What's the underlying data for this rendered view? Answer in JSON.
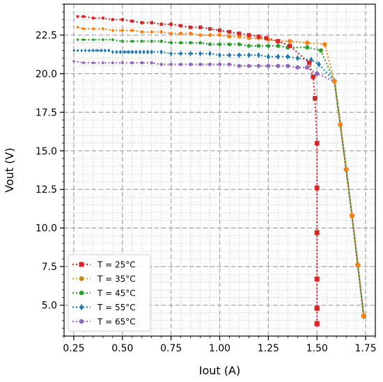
{
  "chart_data": {
    "type": "line",
    "title": "",
    "xlabel": "Iout (A)",
    "ylabel": "Vout (V)",
    "xlim": [
      0.2,
      1.8
    ],
    "ylim": [
      3.0,
      24.5
    ],
    "xticks": [
      0.25,
      0.5,
      0.75,
      1.0,
      1.25,
      1.5,
      1.75
    ],
    "xtick_labels": [
      "0.25",
      "0.50",
      "0.75",
      "1.00",
      "1.25",
      "1.50",
      "1.75"
    ],
    "yticks": [
      5.0,
      7.5,
      10.0,
      12.5,
      15.0,
      17.5,
      20.0,
      22.5
    ],
    "ytick_labels": [
      "5.0",
      "7.5",
      "10.0",
      "12.5",
      "15.0",
      "17.5",
      "20.0",
      "22.5"
    ],
    "grid": true,
    "legend_position": "lower-left",
    "series": [
      {
        "name": "T = 25°C",
        "color": "#d62728",
        "marker": "square",
        "x": [
          0.27,
          0.3,
          0.35,
          0.4,
          0.45,
          0.5,
          0.55,
          0.6,
          0.65,
          0.7,
          0.75,
          0.8,
          0.85,
          0.9,
          0.95,
          1.0,
          1.05,
          1.1,
          1.15,
          1.2,
          1.24,
          1.3,
          1.36,
          1.46,
          1.48,
          1.49,
          1.5,
          1.5,
          1.5,
          1.5,
          1.5,
          1.5
        ],
        "y": [
          23.7,
          23.7,
          23.6,
          23.6,
          23.5,
          23.5,
          23.4,
          23.3,
          23.3,
          23.2,
          23.2,
          23.1,
          23.0,
          23.0,
          22.9,
          22.8,
          22.7,
          22.6,
          22.5,
          22.4,
          22.3,
          22.1,
          21.8,
          20.7,
          19.8,
          18.4,
          15.5,
          12.6,
          9.7,
          6.7,
          4.8,
          3.8
        ]
      },
      {
        "name": "T = 35°C",
        "color": "#ff7f0e",
        "marker": "circle",
        "x": [
          0.27,
          0.3,
          0.35,
          0.4,
          0.45,
          0.5,
          0.55,
          0.6,
          0.65,
          0.7,
          0.75,
          0.8,
          0.85,
          0.9,
          0.95,
          1.0,
          1.05,
          1.1,
          1.15,
          1.2,
          1.25,
          1.3,
          1.36,
          1.45,
          1.54,
          1.59,
          1.62,
          1.65,
          1.68,
          1.71,
          1.74
        ],
        "y": [
          23.0,
          22.9,
          22.9,
          22.9,
          22.8,
          22.8,
          22.8,
          22.7,
          22.7,
          22.7,
          22.6,
          22.6,
          22.6,
          22.5,
          22.5,
          22.5,
          22.4,
          22.4,
          22.3,
          22.3,
          22.2,
          22.1,
          22.1,
          22.0,
          21.9,
          19.5,
          16.7,
          13.8,
          10.8,
          7.6,
          4.3
        ]
      },
      {
        "name": "T = 45°C",
        "color": "#2ca02c",
        "marker": "pentagon",
        "x": [
          0.27,
          0.3,
          0.35,
          0.4,
          0.45,
          0.5,
          0.55,
          0.6,
          0.65,
          0.7,
          0.75,
          0.8,
          0.85,
          0.9,
          0.95,
          1.0,
          1.05,
          1.1,
          1.15,
          1.2,
          1.25,
          1.3,
          1.35,
          1.45,
          1.52,
          1.59,
          1.62,
          1.65,
          1.68,
          1.71,
          1.74
        ],
        "y": [
          22.2,
          22.2,
          22.2,
          22.2,
          22.2,
          22.1,
          22.1,
          22.1,
          22.1,
          22.1,
          22.0,
          22.0,
          22.0,
          22.0,
          21.9,
          21.9,
          21.9,
          21.9,
          21.8,
          21.8,
          21.8,
          21.8,
          21.7,
          21.7,
          21.5,
          19.5,
          16.7,
          13.8,
          10.8,
          7.6,
          4.3
        ]
      },
      {
        "name": "T = 55°C",
        "color": "#1f77b4",
        "marker": "diamond",
        "x": [
          0.25,
          0.27,
          0.29,
          0.31,
          0.33,
          0.35,
          0.37,
          0.39,
          0.41,
          0.43,
          0.45,
          0.47,
          0.49,
          0.51,
          0.53,
          0.55,
          0.57,
          0.59,
          0.61,
          0.63,
          0.65,
          0.7,
          0.75,
          0.8,
          0.85,
          0.9,
          0.95,
          1.0,
          1.05,
          1.1,
          1.15,
          1.2,
          1.25,
          1.3,
          1.35,
          1.4,
          1.47,
          1.51,
          1.59,
          1.62,
          1.65,
          1.68,
          1.71,
          1.74
        ],
        "y": [
          21.5,
          21.5,
          21.5,
          21.5,
          21.5,
          21.5,
          21.5,
          21.5,
          21.5,
          21.5,
          21.4,
          21.4,
          21.4,
          21.4,
          21.4,
          21.4,
          21.4,
          21.4,
          21.4,
          21.4,
          21.4,
          21.4,
          21.3,
          21.3,
          21.3,
          21.3,
          21.3,
          21.2,
          21.2,
          21.2,
          21.2,
          21.2,
          21.1,
          21.1,
          21.1,
          21.0,
          20.9,
          20.6,
          19.5,
          16.7,
          13.8,
          10.8,
          7.6,
          4.3
        ]
      },
      {
        "name": "T = 65°C",
        "color": "#9467bd",
        "marker": "circle",
        "x": [
          0.25,
          0.3,
          0.35,
          0.4,
          0.45,
          0.5,
          0.55,
          0.6,
          0.65,
          0.7,
          0.75,
          0.8,
          0.85,
          0.9,
          0.95,
          1.0,
          1.05,
          1.1,
          1.15,
          1.2,
          1.25,
          1.3,
          1.35,
          1.4,
          1.45,
          1.5,
          1.59,
          1.62,
          1.65,
          1.68,
          1.71,
          1.74
        ],
        "y": [
          20.8,
          20.7,
          20.7,
          20.7,
          20.7,
          20.7,
          20.7,
          20.7,
          20.7,
          20.6,
          20.6,
          20.6,
          20.6,
          20.6,
          20.6,
          20.6,
          20.6,
          20.5,
          20.5,
          20.5,
          20.5,
          20.5,
          20.5,
          20.4,
          20.4,
          20.0,
          19.5,
          16.7,
          13.8,
          10.8,
          7.6,
          4.3
        ]
      }
    ]
  }
}
